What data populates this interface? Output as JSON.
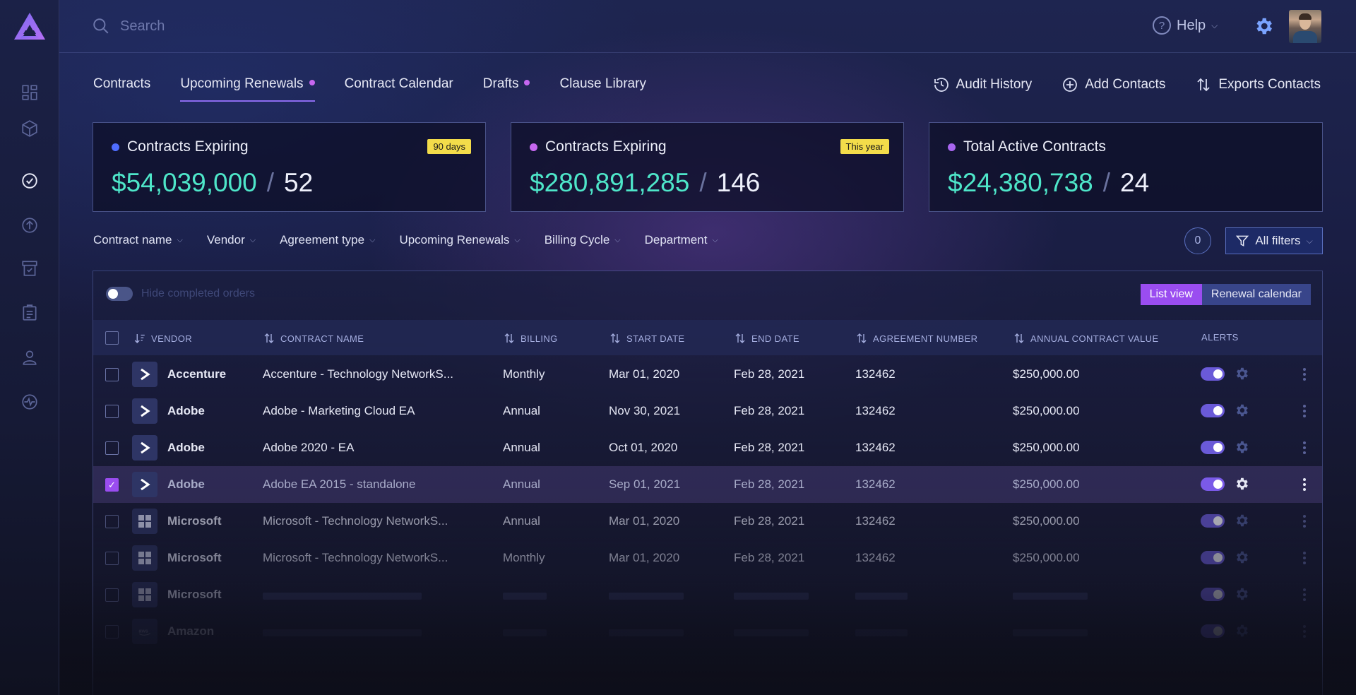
{
  "search": {
    "placeholder": "Search"
  },
  "header": {
    "help_label": "Help"
  },
  "tabs": [
    {
      "label": "Contracts",
      "dot": false,
      "active": false
    },
    {
      "label": "Upcoming Renewals",
      "dot": true,
      "active": true
    },
    {
      "label": "Contract Calendar",
      "dot": false,
      "active": false
    },
    {
      "label": "Drafts",
      "dot": true,
      "active": false
    },
    {
      "label": "Clause Library",
      "dot": false,
      "active": false
    }
  ],
  "actions": [
    {
      "label": "Audit History",
      "icon": "history-icon"
    },
    {
      "label": "Add Contacts",
      "icon": "plus-circle-icon"
    },
    {
      "label": "Exports Contacts",
      "icon": "sort-arrows-icon"
    }
  ],
  "cards": [
    {
      "title": "Contracts Expiring",
      "badge": "90 days",
      "value": "$54,039,000",
      "sep": "/",
      "count": "52",
      "dot_color": "#4f6dff"
    },
    {
      "title": "Contracts Expiring",
      "badge": "This year",
      "value": "$280,891,285",
      "sep": "/",
      "count": "146",
      "dot_color": "#c667f0"
    },
    {
      "title": "Total Active Contracts",
      "badge": "",
      "value": "$24,380,738",
      "sep": "/",
      "count": "24",
      "dot_color": "#a866f0"
    }
  ],
  "filters": [
    "Contract name",
    "Vendor",
    "Agreement type",
    "Upcoming Renewals",
    "Billing Cycle",
    "Department"
  ],
  "filter_count": "0",
  "all_filters_label": "All filters",
  "toggle_label": "Hide completed orders",
  "views": {
    "list": "List view",
    "calendar": "Renewal calendar"
  },
  "table": {
    "columns": [
      "VENDOR",
      "CONTRACT NAME",
      "BILLING",
      "START DATE",
      "END DATE",
      "AGREEMENT NUMBER",
      "ANNUAL CONTRACT VALUE",
      "ALERTS"
    ],
    "rows": [
      {
        "vendor": "Accenture",
        "icon": "accenture-logo-icon",
        "contract": "Accenture - Technology  NetworkS...",
        "billing": "Monthly",
        "start": "Mar 01, 2020",
        "end": "Feb 28, 2021",
        "agreement": "132462",
        "value": "$250,000.00",
        "selected": false
      },
      {
        "vendor": "Adobe",
        "icon": "accenture-logo-icon",
        "contract": "Adobe - Marketing Cloud EA",
        "billing": "Annual",
        "start": "Nov 30, 2021",
        "end": "Feb 28, 2021",
        "agreement": "132462",
        "value": "$250,000.00",
        "selected": false
      },
      {
        "vendor": "Adobe",
        "icon": "accenture-logo-icon",
        "contract": "Adobe 2020 - EA",
        "billing": "Annual",
        "start": "Oct 01, 2020",
        "end": "Feb 28, 2021",
        "agreement": "132462",
        "value": "$250,000.00",
        "selected": false
      },
      {
        "vendor": "Adobe",
        "icon": "accenture-logo-icon",
        "contract": "Adobe EA 2015 - standalone",
        "billing": "Annual",
        "start": "Sep 01, 2021",
        "end": "Feb 28, 2021",
        "agreement": "132462",
        "value": "$250,000.00",
        "selected": true
      },
      {
        "vendor": "Microsoft",
        "icon": "microsoft-logo-icon",
        "contract": "Microsoft - Technology  NetworkS...",
        "billing": "Annual",
        "start": "Mar 01, 2020",
        "end": "Feb 28, 2021",
        "agreement": "132462",
        "value": "$250,000.00",
        "selected": false
      },
      {
        "vendor": "Microsoft",
        "icon": "microsoft-logo-icon",
        "contract": "Microsoft - Technology  NetworkS...",
        "billing": "Monthly",
        "start": "Mar 01, 2020",
        "end": "Feb 28, 2021",
        "agreement": "132462",
        "value": "$250,000.00",
        "selected": false
      },
      {
        "vendor": "Microsoft",
        "icon": "microsoft-logo-icon",
        "contract": "",
        "billing": "",
        "start": "",
        "end": "",
        "agreement": "",
        "value": "",
        "selected": false
      },
      {
        "vendor": "Amazon",
        "icon": "aws-logo-icon",
        "contract": "",
        "billing": "",
        "start": "",
        "end": "",
        "agreement": "",
        "value": "",
        "selected": false
      }
    ]
  },
  "colors": {
    "accent": "#9a4df0",
    "money": "#4ee6c9",
    "badge": "#f3dc4a",
    "background": "#1a1e44"
  }
}
